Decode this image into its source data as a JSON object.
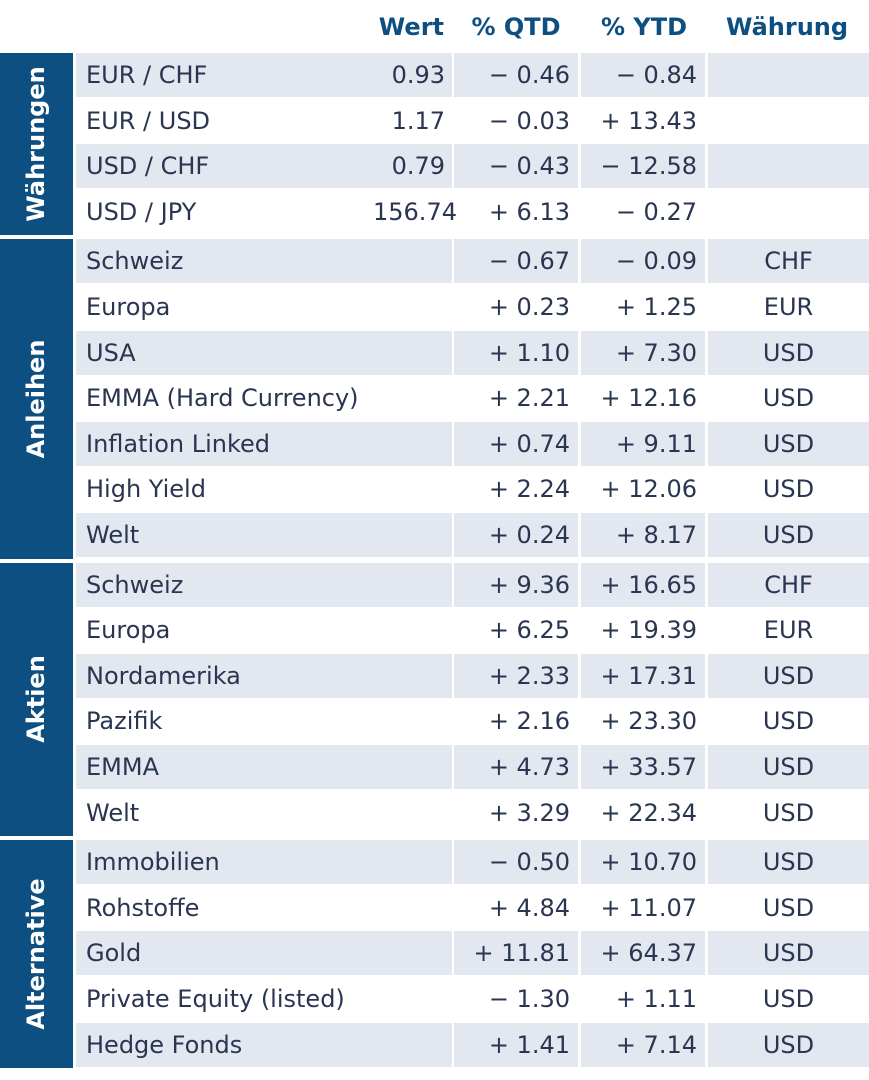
{
  "header": {
    "wert": "Wert",
    "qtd": "% QTD",
    "ytd": "% YTD",
    "currency": "Währung"
  },
  "groups": [
    {
      "label": "Währungen",
      "rows": [
        {
          "name": "EUR / CHF",
          "wert": "0.93",
          "qtd": "− 0.46",
          "ytd": "− 0.84",
          "cur": ""
        },
        {
          "name": "EUR / USD",
          "wert": "1.17",
          "qtd": "− 0.03",
          "ytd": "+ 13.43",
          "cur": ""
        },
        {
          "name": "USD / CHF",
          "wert": "0.79",
          "qtd": "− 0.43",
          "ytd": "− 12.58",
          "cur": ""
        },
        {
          "name": "USD / JPY",
          "wert": "156.74",
          "qtd": "+ 6.13",
          "ytd": "− 0.27",
          "cur": ""
        }
      ]
    },
    {
      "label": "Anleihen",
      "rows": [
        {
          "name": "Schweiz",
          "wert": "",
          "qtd": "− 0.67",
          "ytd": "− 0.09",
          "cur": "CHF"
        },
        {
          "name": "Europa",
          "wert": "",
          "qtd": "+ 0.23",
          "ytd": "+ 1.25",
          "cur": "EUR"
        },
        {
          "name": "USA",
          "wert": "",
          "qtd": "+ 1.10",
          "ytd": "+ 7.30",
          "cur": "USD"
        },
        {
          "name": "EMMA (Hard Currency)",
          "wert": "",
          "qtd": "+ 2.21",
          "ytd": "+ 12.16",
          "cur": "USD"
        },
        {
          "name": "Inflation Linked",
          "wert": "",
          "qtd": "+ 0.74",
          "ytd": "+ 9.11",
          "cur": "USD"
        },
        {
          "name": "High Yield",
          "wert": "",
          "qtd": "+ 2.24",
          "ytd": "+ 12.06",
          "cur": "USD"
        },
        {
          "name": "Welt",
          "wert": "",
          "qtd": "+ 0.24",
          "ytd": "+ 8.17",
          "cur": "USD"
        }
      ]
    },
    {
      "label": "Aktien",
      "rows": [
        {
          "name": "Schweiz",
          "wert": "",
          "qtd": "+ 9.36",
          "ytd": "+ 16.65",
          "cur": "CHF"
        },
        {
          "name": "Europa",
          "wert": "",
          "qtd": "+ 6.25",
          "ytd": "+ 19.39",
          "cur": "EUR"
        },
        {
          "name": "Nordamerika",
          "wert": "",
          "qtd": "+ 2.33",
          "ytd": "+ 17.31",
          "cur": "USD"
        },
        {
          "name": "Pazifik",
          "wert": "",
          "qtd": "+ 2.16",
          "ytd": "+ 23.30",
          "cur": "USD"
        },
        {
          "name": "EMMA",
          "wert": "",
          "qtd": "+ 4.73",
          "ytd": "+ 33.57",
          "cur": "USD"
        },
        {
          "name": "Welt",
          "wert": "",
          "qtd": "+ 3.29",
          "ytd": "+ 22.34",
          "cur": "USD"
        }
      ]
    },
    {
      "label": "Alternative",
      "rows": [
        {
          "name": "Immobilien",
          "wert": "",
          "qtd": "− 0.50",
          "ytd": "+ 10.70",
          "cur": "USD"
        },
        {
          "name": "Rohstoffe",
          "wert": "",
          "qtd": "+ 4.84",
          "ytd": "+ 11.07",
          "cur": "USD"
        },
        {
          "name": "Gold",
          "wert": "",
          "qtd": "+ 11.81",
          "ytd": "+ 64.37",
          "cur": "USD"
        },
        {
          "name": "Private Equity (listed)",
          "wert": "",
          "qtd": "− 1.30",
          "ytd": "+ 1.11",
          "cur": "USD"
        },
        {
          "name": "Hedge Fonds",
          "wert": "",
          "qtd": "+ 1.41",
          "ytd": "+ 7.14",
          "cur": "USD"
        }
      ]
    }
  ]
}
